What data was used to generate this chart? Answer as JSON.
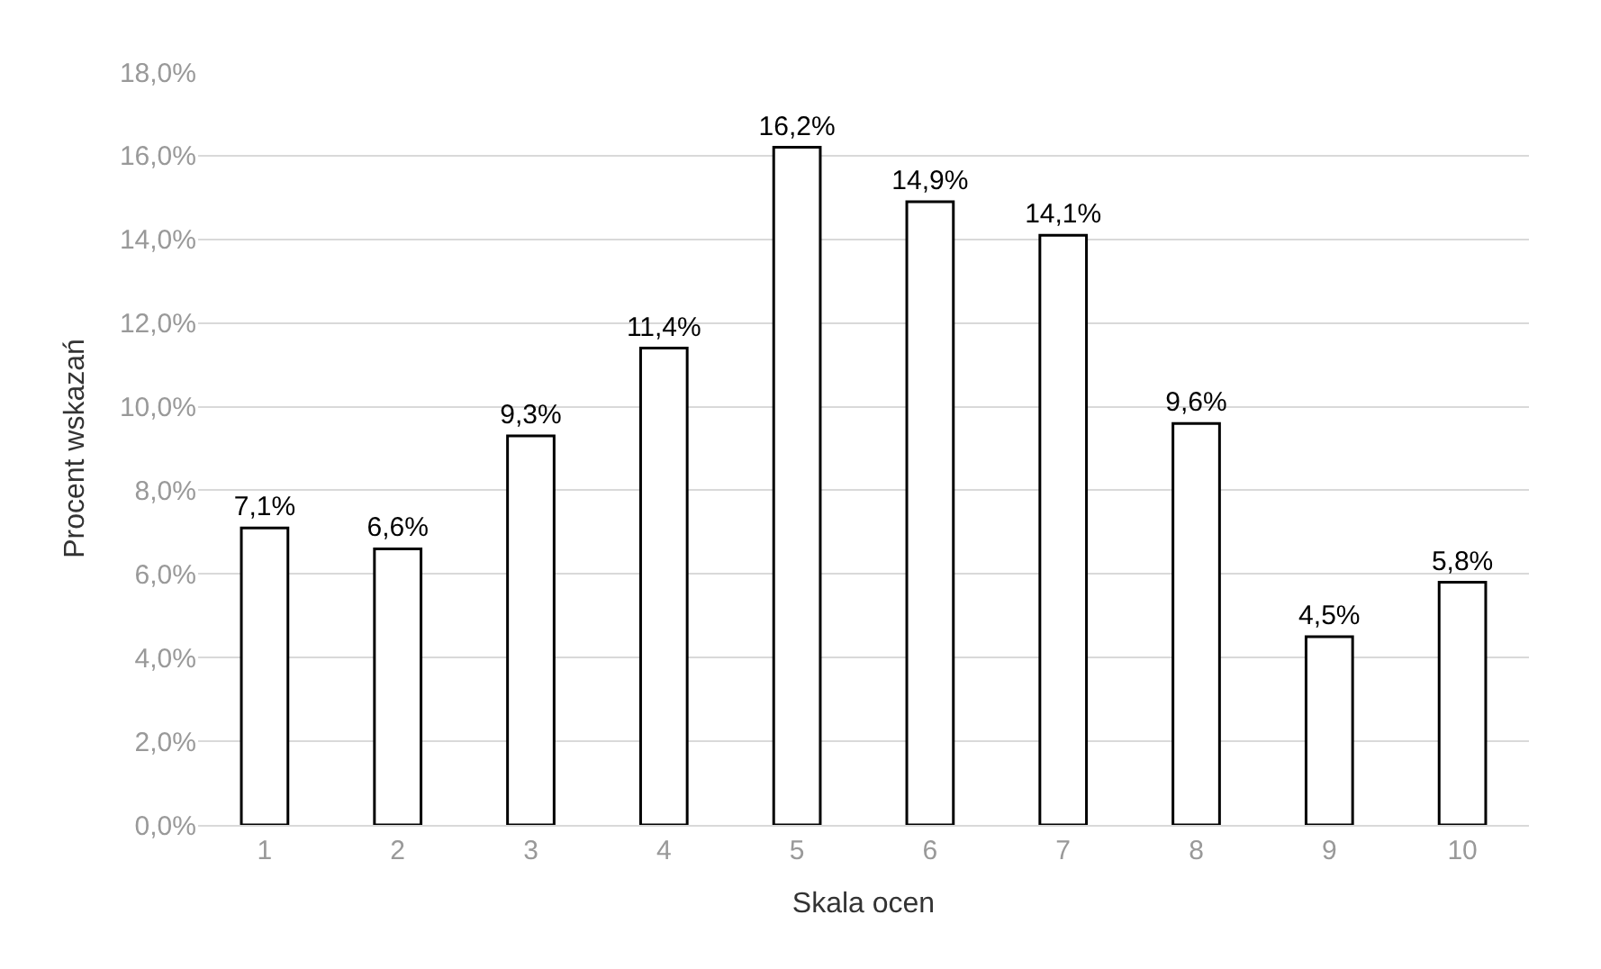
{
  "chart_data": {
    "type": "bar",
    "xlabel": "Skala ocen",
    "ylabel": "Procent wskazań",
    "categories": [
      "1",
      "2",
      "3",
      "4",
      "5",
      "6",
      "7",
      "8",
      "9",
      "10"
    ],
    "values": [
      7.1,
      6.6,
      9.3,
      11.4,
      16.2,
      14.9,
      14.1,
      9.6,
      4.5,
      5.8
    ],
    "value_labels": [
      "7,1%",
      "6,6%",
      "9,3%",
      "11,4%",
      "16,2%",
      "14,9%",
      "14,1%",
      "9,6%",
      "4,5%",
      "5,8%"
    ],
    "color": "#ffffff",
    "ylim": [
      0,
      18
    ],
    "yticks": [
      {
        "value": 0,
        "label": "0,0%"
      },
      {
        "value": 2,
        "label": "2,0%"
      },
      {
        "value": 4,
        "label": "4,0%"
      },
      {
        "value": 6,
        "label": "6,0%"
      },
      {
        "value": 8,
        "label": "8,0%"
      },
      {
        "value": 10,
        "label": "10,0%"
      },
      {
        "value": 12,
        "label": "12,0%"
      },
      {
        "value": 14,
        "label": "14,0%"
      },
      {
        "value": 16,
        "label": "16,0%"
      },
      {
        "value": 18,
        "label": "18,0%"
      }
    ],
    "grid": "y"
  }
}
